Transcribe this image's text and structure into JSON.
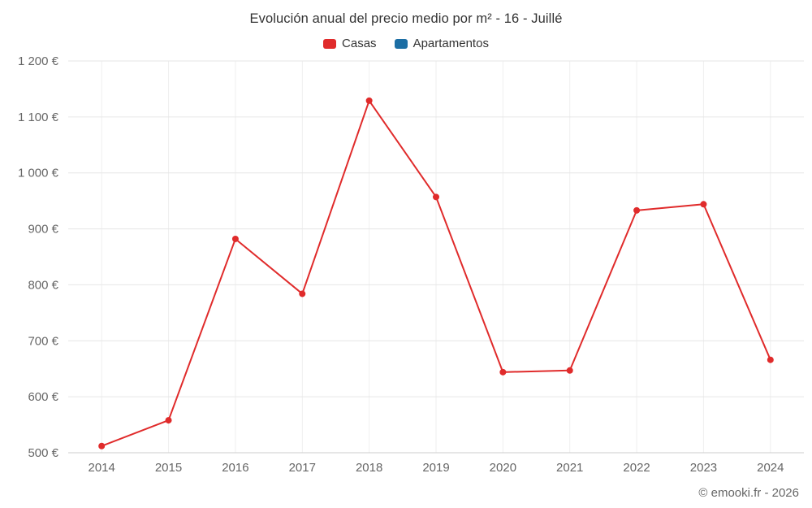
{
  "chart_data": {
    "type": "line",
    "title": "Evolución anual del precio medio por m² - 16 - Juillé",
    "categories": [
      "2014",
      "2015",
      "2016",
      "2017",
      "2018",
      "2019",
      "2020",
      "2021",
      "2022",
      "2023",
      "2024"
    ],
    "series": [
      {
        "name": "Casas",
        "color": "#e02b2b",
        "values": [
          512,
          558,
          882,
          784,
          1129,
          957,
          644,
          647,
          933,
          944,
          666
        ]
      },
      {
        "name": "Apartamentos",
        "color": "#1c6ea4",
        "values": []
      }
    ],
    "xlabel": "",
    "ylabel": "",
    "ylim": [
      500,
      1200
    ],
    "ytick_step": 100,
    "y_suffix": " €",
    "grid": true,
    "legend_position": "top",
    "credit": "© emooki.fr - 2026",
    "colors": {
      "grid_line": "#e6e6e6",
      "axis_line": "#cccccc",
      "axis_label": "#666666",
      "title_text": "#333333"
    }
  }
}
